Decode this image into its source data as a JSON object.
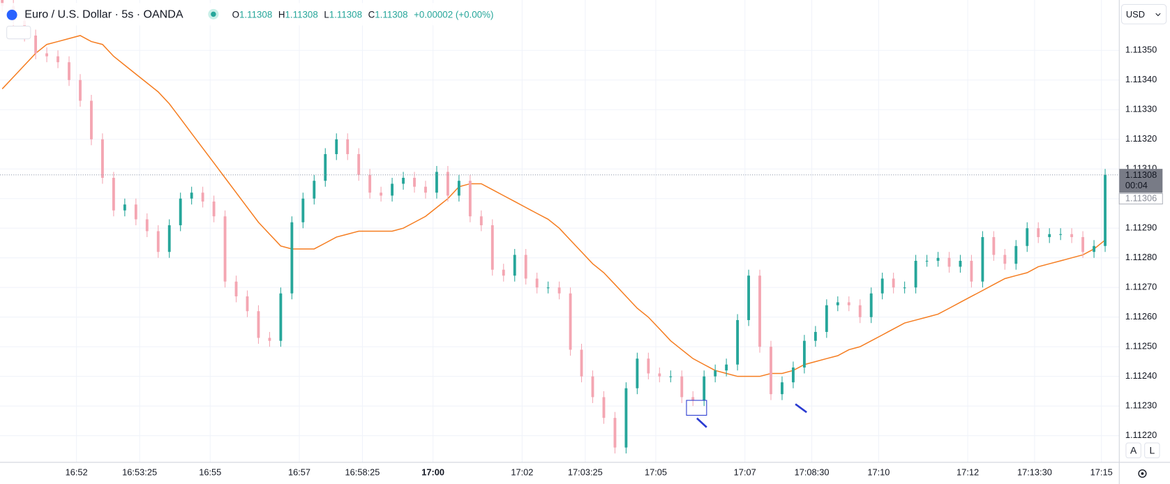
{
  "chart_data": {
    "type": "candlestick",
    "title": "Euro / U.S. Dollar · 5s · OANDA",
    "legend": {
      "o": "O",
      "h": "H",
      "l": "L",
      "c": "C",
      "open": 1.11308,
      "high": 1.11308,
      "low": 1.11308,
      "close": 1.11308,
      "change": "+0.00002 (+0.00%)"
    },
    "currency": "USD",
    "last_price": 1.11308,
    "countdown": "00:04",
    "line_price": 1.11306,
    "buttons": [
      "A",
      "L"
    ],
    "up_color": "#26a69a",
    "down_color": "#f4a6b2",
    "ma_color": "#f57c1f",
    "grid": true,
    "ylim": [
      1.11211,
      1.11367
    ],
    "yticks": [
      {
        "value": 1.1122,
        "label": "1.11220"
      },
      {
        "value": 1.1123,
        "label": "1.11230"
      },
      {
        "value": 1.1124,
        "label": "1.11240"
      },
      {
        "value": 1.1125,
        "label": "1.11250"
      },
      {
        "value": 1.1126,
        "label": "1.11260"
      },
      {
        "value": 1.1127,
        "label": "1.11270"
      },
      {
        "value": 1.1128,
        "label": "1.11280"
      },
      {
        "value": 1.1129,
        "label": "1.11290"
      },
      {
        "value": 1.113,
        "label": "1.11300"
      },
      {
        "value": 1.1131,
        "label": "1.11310"
      },
      {
        "value": 1.1132,
        "label": "1.11320"
      },
      {
        "value": 1.1133,
        "label": "1.11330"
      },
      {
        "value": 1.1134,
        "label": "1.11340"
      },
      {
        "value": 1.1135,
        "label": "1.11350"
      }
    ],
    "xlim": [
      "16:50:17",
      "17:15:24"
    ],
    "xticks": [
      "16:52",
      "16:53:25",
      "16:55",
      "16:57",
      "16:58:25",
      "17:00",
      "17:02",
      "17:03:25",
      "17:05",
      "17:07",
      "17:08:30",
      "17:10",
      "17:12",
      "17:13:30",
      "17:15"
    ],
    "bold_xtick": "17:00",
    "x": [
      "16:50:20",
      "16:50:35",
      "16:50:50",
      "16:51:05",
      "16:51:20",
      "16:51:35",
      "16:51:50",
      "16:52:05",
      "16:52:20",
      "16:52:35",
      "16:52:50",
      "16:53:05",
      "16:53:20",
      "16:53:35",
      "16:53:50",
      "16:54:05",
      "16:54:20",
      "16:54:35",
      "16:54:50",
      "16:55:05",
      "16:55:20",
      "16:55:35",
      "16:55:50",
      "16:56:05",
      "16:56:20",
      "16:56:35",
      "16:56:50",
      "16:57:05",
      "16:57:20",
      "16:57:35",
      "16:57:50",
      "16:58:05",
      "16:58:20",
      "16:58:35",
      "16:58:50",
      "16:59:05",
      "16:59:20",
      "16:59:35",
      "16:59:50",
      "17:00:05",
      "17:00:20",
      "17:00:35",
      "17:00:50",
      "17:01:05",
      "17:01:20",
      "17:01:35",
      "17:01:50",
      "17:02:05",
      "17:02:20",
      "17:02:35",
      "17:02:50",
      "17:03:05",
      "17:03:20",
      "17:03:35",
      "17:03:50",
      "17:04:05",
      "17:04:20",
      "17:04:35",
      "17:04:50",
      "17:05:05",
      "17:05:20",
      "17:05:35",
      "17:05:50",
      "17:06:05",
      "17:06:20",
      "17:06:35",
      "17:06:50",
      "17:07:05",
      "17:07:20",
      "17:07:35",
      "17:07:50",
      "17:08:05",
      "17:08:20",
      "17:08:35",
      "17:08:50",
      "17:09:05",
      "17:09:20",
      "17:09:35",
      "17:09:50",
      "17:10:05",
      "17:10:20",
      "17:10:35",
      "17:10:50",
      "17:11:05",
      "17:11:20",
      "17:11:35",
      "17:11:50",
      "17:12:05",
      "17:12:20",
      "17:12:35",
      "17:12:50",
      "17:13:05",
      "17:13:20",
      "17:13:35",
      "17:13:50",
      "17:14:05",
      "17:14:20",
      "17:14:35",
      "17:14:50",
      "17:15:05"
    ],
    "open": [
      1.11368,
      1.11365,
      1.1136,
      1.11355,
      1.11349,
      1.11348,
      1.11346,
      1.1134,
      1.11333,
      1.1132,
      1.11307,
      1.11296,
      1.11298,
      1.11293,
      1.11289,
      1.11282,
      1.11291,
      1.113,
      1.11302,
      1.11299,
      1.11294,
      1.11272,
      1.11267,
      1.11262,
      1.11253,
      1.11252,
      1.11268,
      1.11292,
      1.113,
      1.11306,
      1.11315,
      1.1132,
      1.11315,
      1.11308,
      1.11302,
      1.11301,
      1.11305,
      1.11307,
      1.11304,
      1.11302,
      1.11309,
      1.11301,
      1.11306,
      1.11294,
      1.11291,
      1.11276,
      1.11274,
      1.11281,
      1.11273,
      1.1127,
      1.1127,
      1.11268,
      1.11249,
      1.1124,
      1.11233,
      1.11226,
      1.11216,
      1.11236,
      1.11246,
      1.11241,
      1.1124,
      1.1124,
      1.11233,
      1.11232,
      1.1124,
      1.11242,
      1.11244,
      1.11259,
      1.11274,
      1.1125,
      1.11234,
      1.11238,
      1.11243,
      1.11252,
      1.11255,
      1.11264,
      1.11265,
      1.11264,
      1.1126,
      1.11268,
      1.11273,
      1.1127,
      1.1127,
      1.11279,
      1.11279,
      1.1128,
      1.11277,
      1.11279,
      1.11272,
      1.11287,
      1.11281,
      1.11278,
      1.11284,
      1.1129,
      1.11287,
      1.11288,
      1.11288,
      1.11287,
      1.11282,
      1.11284
    ],
    "high": [
      1.1137,
      1.11367,
      1.11362,
      1.11357,
      1.11351,
      1.1135,
      1.11348,
      1.11342,
      1.11335,
      1.11322,
      1.11309,
      1.113,
      1.113,
      1.11295,
      1.11291,
      1.11293,
      1.11302,
      1.11304,
      1.11304,
      1.11301,
      1.11296,
      1.11274,
      1.11269,
      1.11264,
      1.11255,
      1.1127,
      1.11294,
      1.11302,
      1.11308,
      1.11317,
      1.11322,
      1.11322,
      1.11317,
      1.1131,
      1.11304,
      1.11307,
      1.11309,
      1.11309,
      1.11306,
      1.11311,
      1.11311,
      1.11308,
      1.11308,
      1.11296,
      1.11293,
      1.11278,
      1.11283,
      1.11283,
      1.11275,
      1.11272,
      1.11272,
      1.1127,
      1.11251,
      1.11242,
      1.11235,
      1.11228,
      1.11238,
      1.11248,
      1.11248,
      1.11243,
      1.11242,
      1.11242,
      1.11235,
      1.11242,
      1.11244,
      1.11246,
      1.11261,
      1.11276,
      1.11276,
      1.11252,
      1.1124,
      1.11245,
      1.11254,
      1.11257,
      1.11266,
      1.11267,
      1.11267,
      1.11266,
      1.1127,
      1.11275,
      1.11275,
      1.11272,
      1.11281,
      1.11281,
      1.11282,
      1.11282,
      1.11281,
      1.11281,
      1.11289,
      1.11289,
      1.11283,
      1.11286,
      1.11292,
      1.11292,
      1.1129,
      1.1129,
      1.1129,
      1.11289,
      1.11286,
      1.1131
    ],
    "low": [
      1.11363,
      1.11358,
      1.11353,
      1.11347,
      1.11346,
      1.11344,
      1.11338,
      1.11331,
      1.11318,
      1.11305,
      1.11294,
      1.11294,
      1.11291,
      1.11287,
      1.1128,
      1.1128,
      1.11289,
      1.11298,
      1.11297,
      1.11292,
      1.1127,
      1.11265,
      1.1126,
      1.11251,
      1.1125,
      1.1125,
      1.11266,
      1.1129,
      1.11298,
      1.11304,
      1.11313,
      1.11313,
      1.11306,
      1.113,
      1.11299,
      1.11299,
      1.11303,
      1.11302,
      1.113,
      1.113,
      1.11299,
      1.11299,
      1.11292,
      1.11289,
      1.11274,
      1.11272,
      1.11272,
      1.11271,
      1.11268,
      1.11268,
      1.11266,
      1.11247,
      1.11238,
      1.11231,
      1.11224,
      1.11214,
      1.11214,
      1.11234,
      1.11239,
      1.11238,
      1.11238,
      1.11231,
      1.1123,
      1.1123,
      1.11238,
      1.1124,
      1.11242,
      1.11257,
      1.11248,
      1.11232,
      1.11232,
      1.11236,
      1.11241,
      1.1125,
      1.11253,
      1.11262,
      1.11262,
      1.11258,
      1.11258,
      1.11266,
      1.11268,
      1.11268,
      1.11268,
      1.11277,
      1.11277,
      1.11275,
      1.11275,
      1.1127,
      1.1127,
      1.11279,
      1.11276,
      1.11276,
      1.11282,
      1.11285,
      1.11285,
      1.11286,
      1.11285,
      1.1128,
      1.1128,
      1.11282
    ],
    "close": [
      1.11365,
      1.1136,
      1.11355,
      1.11349,
      1.11348,
      1.11346,
      1.1134,
      1.11333,
      1.1132,
      1.11307,
      1.11296,
      1.11298,
      1.11293,
      1.11289,
      1.11282,
      1.11291,
      1.113,
      1.11302,
      1.11299,
      1.11294,
      1.11272,
      1.11267,
      1.11262,
      1.11253,
      1.11252,
      1.11268,
      1.11292,
      1.113,
      1.11306,
      1.11315,
      1.1132,
      1.11315,
      1.11308,
      1.11302,
      1.11301,
      1.11305,
      1.11307,
      1.11304,
      1.11302,
      1.11309,
      1.11301,
      1.11306,
      1.11294,
      1.11291,
      1.11276,
      1.11274,
      1.11281,
      1.11273,
      1.1127,
      1.1127,
      1.11268,
      1.11249,
      1.1124,
      1.11233,
      1.11226,
      1.11216,
      1.11236,
      1.11246,
      1.11241,
      1.1124,
      1.1124,
      1.11233,
      1.11232,
      1.1124,
      1.11242,
      1.11244,
      1.11259,
      1.11274,
      1.1125,
      1.11234,
      1.11238,
      1.11243,
      1.11252,
      1.11255,
      1.11264,
      1.11265,
      1.11264,
      1.1126,
      1.11268,
      1.11273,
      1.1127,
      1.1127,
      1.11279,
      1.11279,
      1.1128,
      1.11277,
      1.11279,
      1.11272,
      1.11287,
      1.11281,
      1.11278,
      1.11284,
      1.1129,
      1.11287,
      1.11288,
      1.11288,
      1.11287,
      1.11282,
      1.11284,
      1.11308
    ],
    "ma": [
      1.11337,
      1.11341,
      1.11345,
      1.11349,
      1.11352,
      1.11353,
      1.11354,
      1.11355,
      1.11353,
      1.11352,
      1.11348,
      1.11345,
      1.11342,
      1.11339,
      1.11336,
      1.11332,
      1.11327,
      1.11322,
      1.11317,
      1.11312,
      1.11307,
      1.11302,
      1.11297,
      1.11292,
      1.11288,
      1.11284,
      1.11283,
      1.11283,
      1.11283,
      1.11285,
      1.11287,
      1.11288,
      1.11289,
      1.11289,
      1.11289,
      1.11289,
      1.1129,
      1.11292,
      1.11294,
      1.11297,
      1.113,
      1.11304,
      1.11305,
      1.11305,
      1.11303,
      1.11301,
      1.11299,
      1.11297,
      1.11295,
      1.11293,
      1.1129,
      1.11286,
      1.11282,
      1.11278,
      1.11275,
      1.11271,
      1.11267,
      1.11263,
      1.1126,
      1.11256,
      1.11252,
      1.11249,
      1.11246,
      1.11244,
      1.11242,
      1.11241,
      1.1124,
      1.1124,
      1.1124,
      1.11241,
      1.11241,
      1.11242,
      1.11244,
      1.11245,
      1.11246,
      1.11247,
      1.11249,
      1.1125,
      1.11252,
      1.11254,
      1.11256,
      1.11258,
      1.11259,
      1.1126,
      1.11261,
      1.11263,
      1.11265,
      1.11267,
      1.11269,
      1.11271,
      1.11273,
      1.11274,
      1.11275,
      1.11277,
      1.11278,
      1.11279,
      1.1128,
      1.11281,
      1.11283,
      1.11286
    ]
  }
}
